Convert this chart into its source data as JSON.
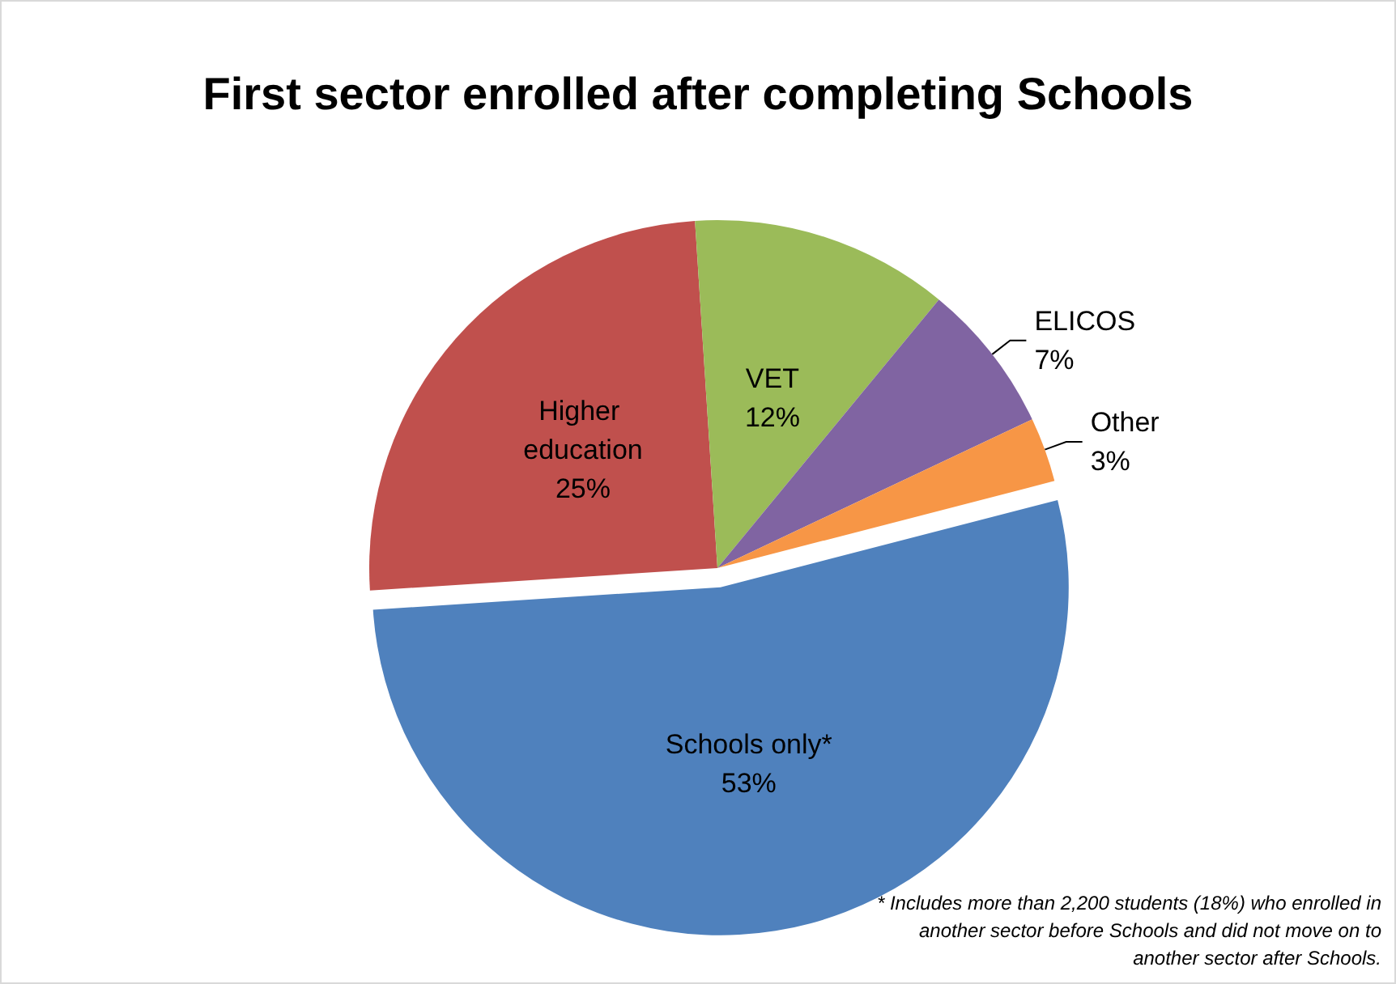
{
  "chart_data": {
    "type": "pie",
    "title": "First sector enrolled after completing Schools",
    "categories": [
      "Schools only*",
      "Higher education",
      "VET",
      "ELICOS",
      "Other"
    ],
    "values": [
      53,
      25,
      12,
      7,
      3
    ],
    "colors": [
      "#4f81bd",
      "#c0504d",
      "#9bbb59",
      "#8064a2",
      "#f79646"
    ],
    "value_labels": [
      "53%",
      "25%",
      "12%",
      "7%",
      "3%"
    ],
    "annotations": [
      "* Includes more than 2,200 students (18%) who enrolled in another sector before Schools and did not move on to another sector after Schools."
    ]
  }
}
